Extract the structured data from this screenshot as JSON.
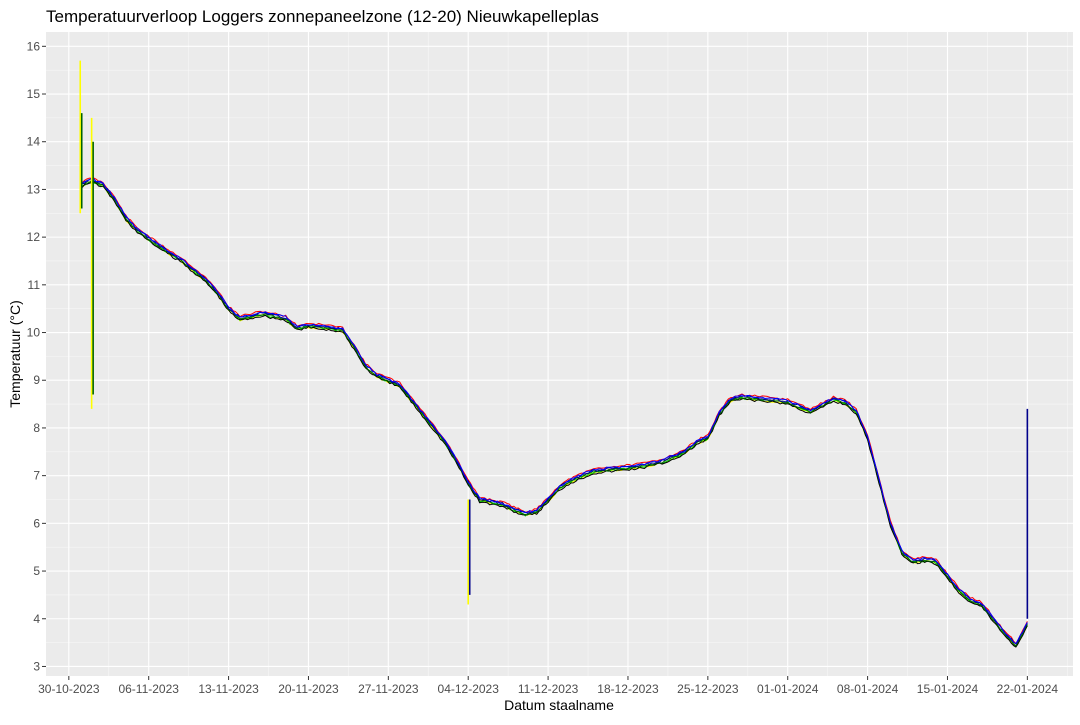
{
  "chart_data": {
    "type": "line",
    "title": "Temperatuurverloop Loggers zonnepaneelzone (12-20) Nieuwkapelleplas",
    "xlabel": "Datum staalname",
    "ylabel": "Temperatuur (°C)",
    "ylim": [
      2.8,
      16.3
    ],
    "xlim": [
      "2023-10-28",
      "2024-01-26"
    ],
    "grid": true,
    "legend": "none",
    "x_ticks": [
      "30-10-2023",
      "06-11-2023",
      "13-11-2023",
      "20-11-2023",
      "27-11-2023",
      "04-12-2023",
      "11-12-2023",
      "18-12-2023",
      "25-12-2023",
      "01-01-2024",
      "08-01-2024",
      "15-01-2024",
      "22-01-2024"
    ],
    "y_ticks": [
      3,
      4,
      5,
      6,
      7,
      8,
      9,
      10,
      11,
      12,
      13,
      14,
      15,
      16
    ],
    "series_colors": {
      "red": "#ff0000",
      "yellow": "#ffff00",
      "green": "#00cc00",
      "darkgreen": "#006400",
      "blue": "#0000ff",
      "navy": "#00008b",
      "black": "#000000"
    },
    "main_curve": {
      "x": [
        "2023-10-31",
        "2023-11-01",
        "2023-11-02",
        "2023-11-03",
        "2023-11-04",
        "2023-11-05",
        "2023-11-07",
        "2023-11-09",
        "2023-11-11",
        "2023-11-12",
        "2023-11-13",
        "2023-11-14",
        "2023-11-16",
        "2023-11-18",
        "2023-11-19",
        "2023-11-20",
        "2023-11-22",
        "2023-11-23",
        "2023-11-24",
        "2023-11-25",
        "2023-11-26",
        "2023-11-28",
        "2023-11-29",
        "2023-11-30",
        "2023-12-02",
        "2023-12-03",
        "2023-12-04",
        "2023-12-05",
        "2023-12-07",
        "2023-12-08",
        "2023-12-09",
        "2023-12-10",
        "2023-12-11",
        "2023-12-12",
        "2023-12-13",
        "2023-12-15",
        "2023-12-17",
        "2023-12-19",
        "2023-12-21",
        "2023-12-23",
        "2023-12-24",
        "2023-12-25",
        "2023-12-26",
        "2023-12-27",
        "2023-12-28",
        "2023-12-30",
        "2024-01-01",
        "2024-01-03",
        "2024-01-05",
        "2024-01-06",
        "2024-01-07",
        "2024-01-08",
        "2024-01-09",
        "2024-01-10",
        "2024-01-11",
        "2024-01-12",
        "2024-01-13",
        "2024-01-14",
        "2024-01-15",
        "2024-01-16",
        "2024-01-17",
        "2024-01-18",
        "2024-01-19",
        "2024-01-20",
        "2024-01-21",
        "2024-01-22"
      ],
      "y": [
        13.1,
        13.2,
        13.1,
        12.8,
        12.4,
        12.15,
        11.8,
        11.5,
        11.1,
        10.85,
        10.5,
        10.3,
        10.4,
        10.3,
        10.1,
        10.15,
        10.1,
        10.05,
        9.7,
        9.3,
        9.1,
        8.9,
        8.6,
        8.3,
        7.7,
        7.3,
        6.85,
        6.5,
        6.4,
        6.3,
        6.2,
        6.25,
        6.5,
        6.75,
        6.9,
        7.1,
        7.15,
        7.2,
        7.3,
        7.5,
        7.7,
        7.8,
        8.3,
        8.6,
        8.65,
        8.6,
        8.55,
        8.35,
        8.6,
        8.55,
        8.35,
        7.8,
        6.9,
        6.0,
        5.4,
        5.2,
        5.25,
        5.2,
        4.9,
        4.6,
        4.4,
        4.3,
        4.0,
        3.7,
        3.45,
        3.9
      ]
    },
    "spikes": [
      {
        "x": "2023-10-31",
        "ymin": 12.5,
        "ymax": 15.7,
        "color": "yellow"
      },
      {
        "x": "2023-10-31",
        "ymin": 12.6,
        "ymax": 14.6,
        "color": "darkgreen"
      },
      {
        "x": "2023-11-01",
        "ymin": 8.4,
        "ymax": 14.5,
        "color": "yellow"
      },
      {
        "x": "2023-11-01",
        "ymin": 8.7,
        "ymax": 14.0,
        "color": "darkgreen"
      },
      {
        "x": "2023-12-04",
        "ymin": 4.3,
        "ymax": 6.5,
        "color": "yellow"
      },
      {
        "x": "2023-12-04",
        "ymin": 4.5,
        "ymax": 6.5,
        "color": "navy"
      },
      {
        "x": "2024-01-22",
        "ymin": 4.0,
        "ymax": 8.4,
        "color": "navy"
      }
    ]
  }
}
